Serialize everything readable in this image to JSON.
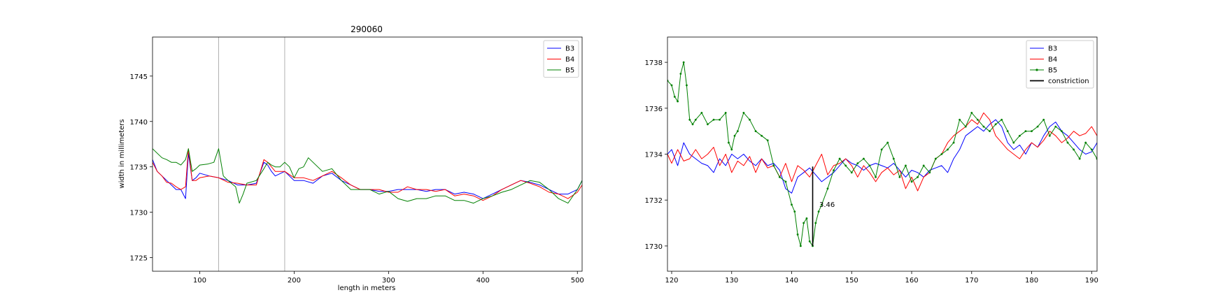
{
  "chart_data": [
    {
      "type": "line",
      "title": "290060",
      "xlabel": "length in meters",
      "ylabel": "width in millimeters",
      "xlim": [
        50,
        505
      ],
      "ylim": [
        1723.5,
        1749.3
      ],
      "xticks": [
        100,
        200,
        300,
        400,
        500
      ],
      "yticks": [
        1725,
        1730,
        1735,
        1740,
        1745
      ],
      "vlines": [
        120,
        190
      ],
      "grid": false,
      "legend": "top-right",
      "series": [
        {
          "name": "B3",
          "color": "#0000ff",
          "x": [
            50,
            55,
            60,
            65,
            70,
            75,
            80,
            85,
            88,
            92,
            96,
            100,
            110,
            120,
            130,
            140,
            150,
            160,
            168,
            172,
            176,
            180,
            190,
            200,
            210,
            220,
            230,
            240,
            250,
            260,
            270,
            280,
            290,
            300,
            310,
            320,
            330,
            340,
            350,
            360,
            370,
            380,
            390,
            400,
            410,
            420,
            430,
            440,
            450,
            460,
            470,
            480,
            490,
            500,
            505
          ],
          "y": [
            1735.8,
            1734.5,
            1734,
            1733.5,
            1733,
            1732.5,
            1732.5,
            1731.5,
            1736.5,
            1733.5,
            1733.8,
            1734.3,
            1734,
            1733.8,
            1733.5,
            1733,
            1733,
            1733.2,
            1735.5,
            1735.2,
            1734.5,
            1734,
            1734.5,
            1733.5,
            1733.5,
            1733.2,
            1734,
            1734.3,
            1733.5,
            1733,
            1732.5,
            1732.5,
            1732.3,
            1732.3,
            1732.5,
            1732.5,
            1732.5,
            1732.3,
            1732.5,
            1732.5,
            1732,
            1732.2,
            1732,
            1731.5,
            1732,
            1732.5,
            1733,
            1733.5,
            1733.3,
            1733,
            1732.5,
            1732,
            1732,
            1732.5,
            1733.5
          ]
        },
        {
          "name": "B4",
          "color": "#ff0000",
          "x": [
            50,
            55,
            60,
            65,
            70,
            75,
            80,
            85,
            88,
            92,
            96,
            100,
            110,
            120,
            130,
            140,
            150,
            160,
            168,
            172,
            176,
            180,
            190,
            200,
            210,
            220,
            230,
            240,
            250,
            260,
            270,
            280,
            290,
            300,
            310,
            320,
            330,
            340,
            350,
            360,
            370,
            380,
            390,
            400,
            410,
            420,
            430,
            440,
            450,
            460,
            470,
            480,
            490,
            500,
            505
          ],
          "y": [
            1735.5,
            1734.5,
            1734,
            1733.3,
            1733.2,
            1732.8,
            1732.5,
            1732.8,
            1737,
            1733.5,
            1733.5,
            1733.8,
            1734,
            1733.8,
            1733.3,
            1733.2,
            1733,
            1733,
            1735.8,
            1735.5,
            1735,
            1734.5,
            1734.5,
            1733.8,
            1733.8,
            1733.5,
            1734,
            1734.5,
            1733.8,
            1733,
            1732.5,
            1732.5,
            1732.5,
            1732.2,
            1732.2,
            1732.8,
            1732.5,
            1732.5,
            1732.3,
            1732.5,
            1731.8,
            1732,
            1731.8,
            1731.3,
            1731.8,
            1732.5,
            1733,
            1733.5,
            1733.2,
            1732.8,
            1732.2,
            1732,
            1731.5,
            1732.2,
            1733
          ]
        },
        {
          "name": "B5",
          "color": "#008000",
          "x": [
            50,
            55,
            60,
            65,
            70,
            75,
            80,
            85,
            88,
            92,
            96,
            100,
            108,
            115,
            120,
            125,
            130,
            138,
            142,
            146,
            150,
            160,
            168,
            172,
            176,
            180,
            185,
            190,
            195,
            200,
            205,
            210,
            215,
            220,
            230,
            240,
            250,
            260,
            270,
            280,
            290,
            300,
            310,
            320,
            330,
            340,
            350,
            360,
            370,
            380,
            390,
            400,
            410,
            420,
            430,
            440,
            450,
            460,
            470,
            480,
            490,
            500,
            505
          ],
          "y": [
            1737,
            1736.5,
            1736,
            1735.8,
            1735.5,
            1735.5,
            1735.2,
            1735.8,
            1737,
            1734.5,
            1734.8,
            1735.2,
            1735.3,
            1735.5,
            1737,
            1734,
            1733.5,
            1732.8,
            1731,
            1732,
            1733.2,
            1733.5,
            1734.8,
            1735.5,
            1735.2,
            1735,
            1735,
            1735.5,
            1735,
            1733.8,
            1734.8,
            1735,
            1736,
            1735.5,
            1734.5,
            1734.8,
            1733.5,
            1732.5,
            1732.5,
            1732.5,
            1732,
            1732.3,
            1731.5,
            1731.2,
            1731.5,
            1731.5,
            1731.8,
            1731.8,
            1731.3,
            1731.3,
            1731,
            1731.5,
            1731.8,
            1732.2,
            1732.5,
            1733,
            1733.5,
            1733.3,
            1732.5,
            1731.5,
            1731,
            1732.5,
            1733.5
          ]
        }
      ]
    },
    {
      "type": "line",
      "title": "",
      "xlabel": "",
      "ylabel": "",
      "xlim": [
        119.3,
        190.9
      ],
      "ylim": [
        1728.9,
        1739.1
      ],
      "xticks": [
        120,
        130,
        140,
        150,
        160,
        170,
        180,
        190
      ],
      "yticks": [
        1730,
        1732,
        1734,
        1736,
        1738
      ],
      "grid": false,
      "legend": "top-right",
      "constriction": {
        "x": 143.5,
        "y_top": 1733.46,
        "y_bottom": 1730.0,
        "label": "3.46",
        "label_x": 144.6,
        "label_y": 1731.7
      },
      "series": [
        {
          "name": "B3",
          "color": "#0000ff",
          "marker": false,
          "x": [
            119.3,
            120,
            121,
            122,
            123,
            124,
            125,
            126,
            127,
            128,
            129,
            130,
            131,
            132,
            133,
            134,
            135,
            136,
            137,
            138,
            139,
            140,
            141,
            142,
            143,
            144,
            145,
            146,
            147,
            148,
            149,
            150,
            151,
            152,
            153,
            154,
            155,
            156,
            157,
            158,
            159,
            160,
            161,
            162,
            163,
            164,
            165,
            166,
            167,
            168,
            169,
            170,
            171,
            172,
            173,
            174,
            175,
            176,
            177,
            178,
            179,
            180,
            181,
            182,
            183,
            184,
            185,
            186,
            187,
            188,
            189,
            190,
            190.9
          ],
          "y": [
            1734,
            1734.2,
            1733.5,
            1734.5,
            1734,
            1733.8,
            1733.6,
            1733.5,
            1733.2,
            1733.8,
            1733.5,
            1734,
            1733.8,
            1734,
            1733.7,
            1733.5,
            1733.8,
            1733.5,
            1733.6,
            1733.3,
            1732.5,
            1732.3,
            1733,
            1733.2,
            1733.4,
            1733.1,
            1732.8,
            1733,
            1733.2,
            1733.5,
            1733.8,
            1733.6,
            1733.5,
            1733.3,
            1733.5,
            1733.6,
            1733.5,
            1733.4,
            1733.6,
            1733.3,
            1733,
            1733.3,
            1733.2,
            1733,
            1733.3,
            1733.4,
            1733.5,
            1733.2,
            1733.8,
            1734.2,
            1734.8,
            1735,
            1735.2,
            1735,
            1735.3,
            1735.5,
            1735.2,
            1734.5,
            1734.2,
            1734.4,
            1734,
            1734.5,
            1734.3,
            1734.8,
            1735.2,
            1735.4,
            1735,
            1734.8,
            1734.5,
            1734.2,
            1734,
            1734.1,
            1734.5
          ]
        },
        {
          "name": "B4",
          "color": "#ff0000",
          "marker": false,
          "x": [
            119.3,
            120,
            121,
            122,
            123,
            124,
            125,
            126,
            127,
            128,
            129,
            130,
            131,
            132,
            133,
            134,
            135,
            136,
            137,
            138,
            139,
            140,
            141,
            142,
            143,
            144,
            145,
            146,
            147,
            148,
            149,
            150,
            151,
            152,
            153,
            154,
            155,
            156,
            157,
            158,
            159,
            160,
            161,
            162,
            163,
            164,
            165,
            166,
            167,
            168,
            169,
            170,
            171,
            172,
            173,
            174,
            175,
            176,
            177,
            178,
            179,
            180,
            181,
            182,
            183,
            184,
            185,
            186,
            187,
            188,
            189,
            190,
            190.9
          ],
          "y": [
            1734,
            1733.6,
            1734.2,
            1733.7,
            1733.8,
            1734.2,
            1733.8,
            1734,
            1734.3,
            1733.5,
            1734,
            1733.2,
            1733.7,
            1733.5,
            1733.9,
            1733.2,
            1733.8,
            1733.4,
            1733.5,
            1733,
            1733.6,
            1732.8,
            1733.5,
            1733.3,
            1733,
            1733.5,
            1734,
            1733.1,
            1733.5,
            1733.6,
            1733.8,
            1733.5,
            1733,
            1733.5,
            1733.2,
            1732.8,
            1733.2,
            1733.4,
            1733.1,
            1733.3,
            1732.5,
            1733,
            1732.4,
            1733,
            1733.2,
            1733.8,
            1734,
            1734.5,
            1734.8,
            1735,
            1735.2,
            1735.5,
            1735.3,
            1735.8,
            1735.5,
            1734.8,
            1734.5,
            1734.2,
            1734,
            1733.8,
            1734.2,
            1734.5,
            1734.3,
            1734.6,
            1735,
            1734.8,
            1734.5,
            1734.7,
            1735,
            1734.8,
            1734.9,
            1735.2,
            1734.8
          ]
        },
        {
          "name": "B5",
          "color": "#008000",
          "marker": true,
          "x": [
            119.3,
            120,
            120.5,
            121,
            121.5,
            122,
            122.5,
            123,
            123.5,
            124,
            125,
            126,
            127,
            128,
            129,
            129.5,
            130,
            130.5,
            131,
            132,
            133,
            134,
            135,
            136,
            137,
            138,
            139,
            140,
            140.5,
            141,
            141.5,
            142,
            142.5,
            143,
            143.5,
            144,
            144.5,
            145,
            146,
            147,
            148,
            149,
            150,
            151,
            152,
            153,
            154,
            155,
            156,
            157,
            158,
            159,
            160,
            161,
            162,
            163,
            164,
            165,
            166,
            167,
            168,
            169,
            170,
            171,
            172,
            173,
            174,
            175,
            176,
            177,
            178,
            179,
            180,
            181,
            182,
            183,
            184,
            185,
            186,
            187,
            188,
            189,
            190,
            190.9
          ],
          "y": [
            1737.2,
            1737,
            1736.5,
            1736.3,
            1737.5,
            1738,
            1737,
            1735.5,
            1735.3,
            1735.5,
            1735.8,
            1735.3,
            1735.5,
            1735.5,
            1735.8,
            1734.5,
            1734.2,
            1734.8,
            1735,
            1735.8,
            1735.5,
            1735,
            1734.8,
            1734.6,
            1733.5,
            1733,
            1732.8,
            1731.8,
            1731.5,
            1730.5,
            1730,
            1731,
            1731.2,
            1730.2,
            1730,
            1731,
            1731.5,
            1731.8,
            1732.5,
            1733.3,
            1733.8,
            1733.5,
            1733.2,
            1733.6,
            1733.8,
            1733.5,
            1733,
            1734.2,
            1734.5,
            1733.8,
            1733,
            1733.5,
            1732.8,
            1733,
            1733.5,
            1733.2,
            1733.8,
            1734,
            1734.2,
            1734.5,
            1735.5,
            1735.2,
            1735.8,
            1735.5,
            1735.2,
            1735,
            1735.3,
            1735.5,
            1735,
            1734.5,
            1734.8,
            1735,
            1735,
            1735.2,
            1735.5,
            1734.8,
            1735.2,
            1735,
            1734.5,
            1734.2,
            1733.8,
            1734.5,
            1734.2,
            1733.8
          ]
        }
      ]
    }
  ]
}
